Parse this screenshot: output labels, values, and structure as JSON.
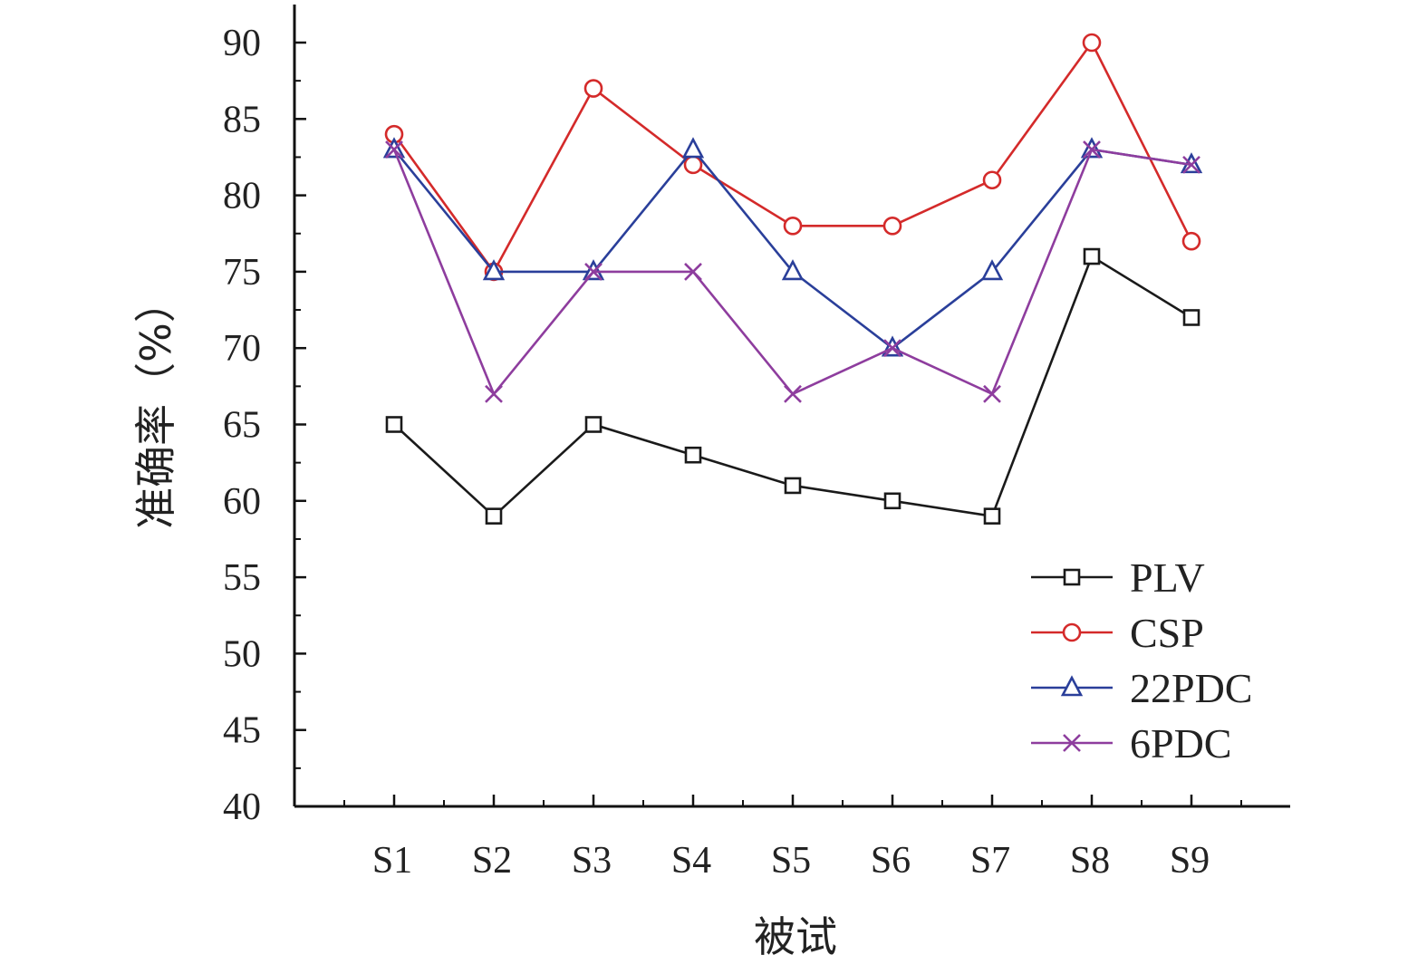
{
  "chart_data": {
    "type": "line",
    "title": "",
    "xlabel": "被试",
    "ylabel": "准确率（%）",
    "categories": [
      "S1",
      "S2",
      "S3",
      "S4",
      "S5",
      "S6",
      "S7",
      "S8",
      "S9"
    ],
    "ylim": [
      40,
      92
    ],
    "yticks": [
      40,
      45,
      50,
      55,
      60,
      65,
      70,
      75,
      80,
      85,
      90
    ],
    "grid": false,
    "legend_position": "bottom-right",
    "series": [
      {
        "name": "PLV",
        "color": "#1a1a1a",
        "marker": "square",
        "values": [
          65,
          59,
          65,
          63,
          61,
          60,
          59,
          76,
          72
        ]
      },
      {
        "name": "CSP",
        "color": "#d42a2a",
        "marker": "circle",
        "values": [
          84,
          75,
          87,
          82,
          78,
          78,
          81,
          90,
          77
        ]
      },
      {
        "name": "22PDC",
        "color": "#2a3f9a",
        "marker": "triangle",
        "values": [
          83,
          75,
          75,
          83,
          75,
          70,
          75,
          83,
          82
        ]
      },
      {
        "name": "6PDC",
        "color": "#8e3d9e",
        "marker": "cross",
        "values": [
          83,
          67,
          75,
          75,
          67,
          70,
          67,
          83,
          82
        ]
      }
    ]
  }
}
